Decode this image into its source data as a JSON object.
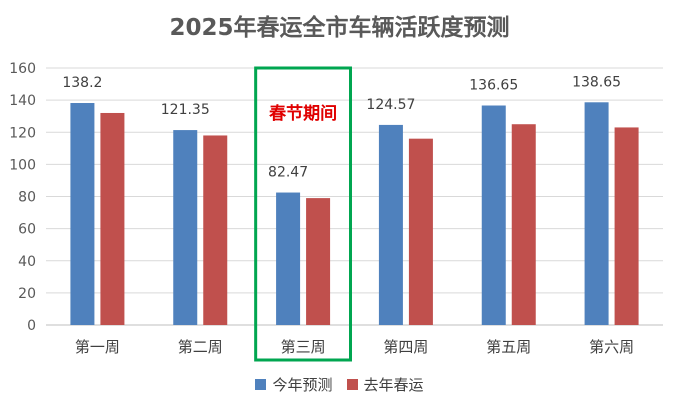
{
  "chart_data": {
    "type": "bar",
    "title": "2025年春运全市车辆活跃度预测",
    "categories": [
      "第一周",
      "第二周",
      "第三周",
      "第四周",
      "第五周",
      "第六周"
    ],
    "series": [
      {
        "name": "今年预测",
        "color": "#4f81bd",
        "values": [
          138.2,
          121.35,
          82.47,
          124.57,
          136.65,
          138.65
        ]
      },
      {
        "name": "去年春运",
        "color": "#c0504d",
        "values": [
          132,
          118,
          79,
          116,
          125,
          123
        ]
      }
    ],
    "data_labels": [
      "138.2",
      "121.35",
      "82.47",
      "124.57",
      "136.65",
      "138.65"
    ],
    "ylim": [
      0,
      160
    ],
    "yticks": [
      0,
      20,
      40,
      60,
      80,
      100,
      120,
      140,
      160
    ],
    "grid": true,
    "legend": "bottom",
    "highlight": {
      "category": "第三周",
      "label": "春节期间",
      "color": "#00a650",
      "text_color": "#e00000"
    }
  }
}
